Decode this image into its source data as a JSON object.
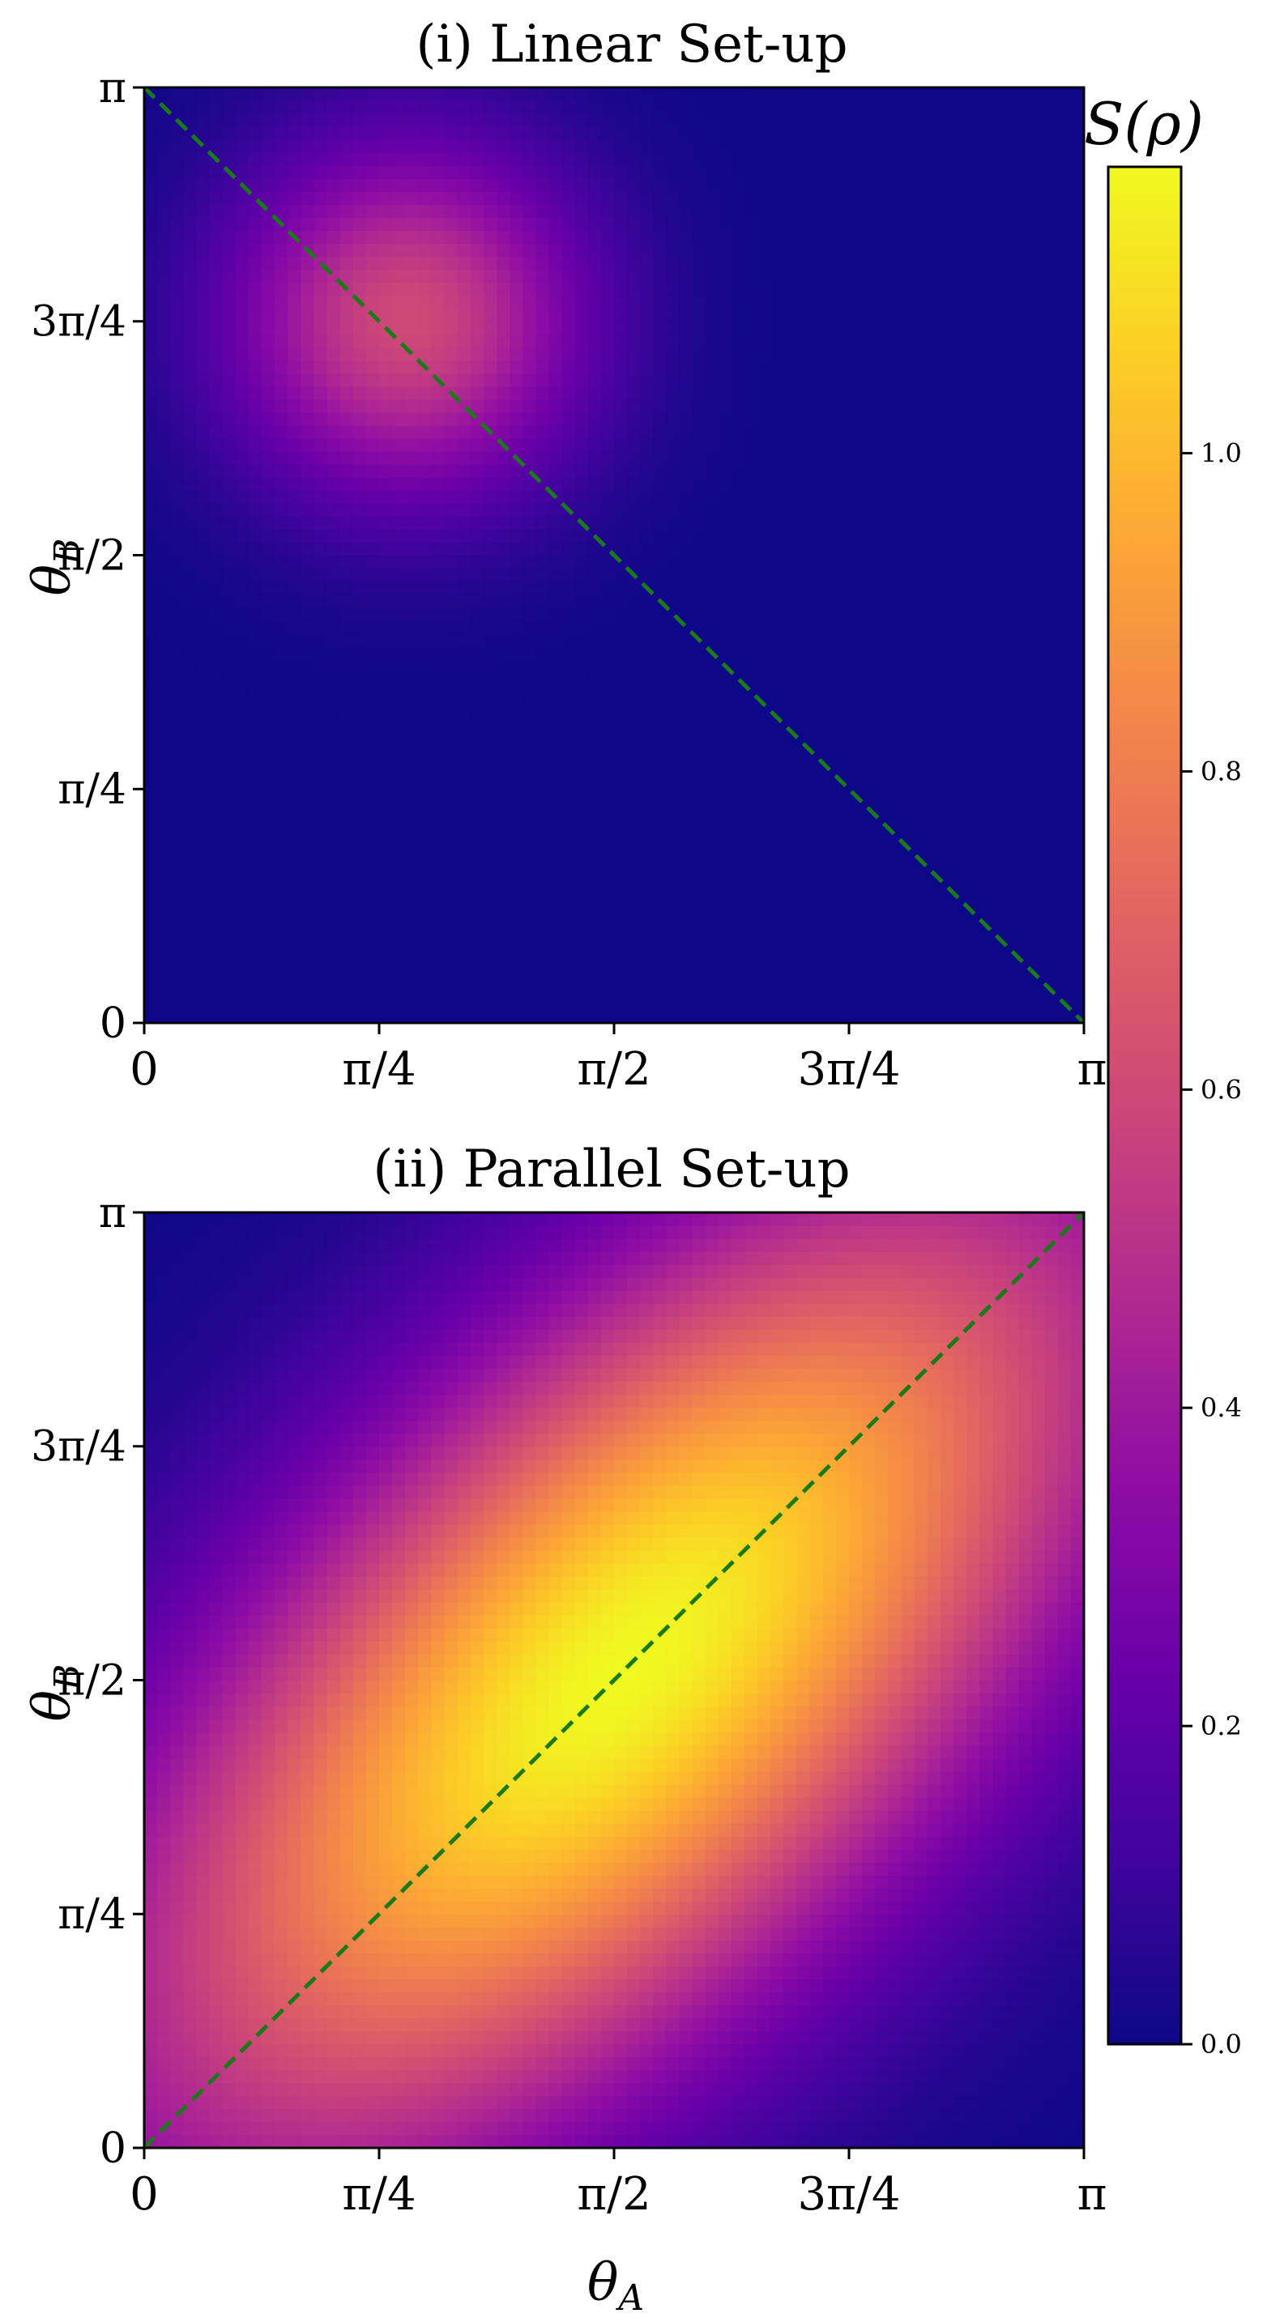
{
  "colorbar": {
    "label": "S(ρ)",
    "colormap": "plasma",
    "vmin": 0.0,
    "vmax": 1.18,
    "ticks": [
      0.0,
      0.2,
      0.4,
      0.6,
      0.8,
      1.0
    ],
    "tick_labels": [
      "0.0",
      "0.2",
      "0.4",
      "0.6",
      "0.8",
      "1.0"
    ]
  },
  "chart_data": [
    {
      "type": "heatmap",
      "title": "(i) Linear Set-up",
      "xlabel": "",
      "ylabel": "θ_B",
      "xlim": [
        0,
        3.14159
      ],
      "ylim": [
        0,
        3.14159
      ],
      "x_ticks": [
        0,
        0.7854,
        1.5708,
        2.3562,
        3.14159
      ],
      "y_ticks": [
        0,
        0.7854,
        1.5708,
        2.3562,
        3.14159
      ],
      "x_tick_labels": [
        "0",
        "π/4",
        "π/2",
        "3π/4",
        "π"
      ],
      "y_tick_labels": [
        "0",
        "π/4",
        "π/2",
        "3π/4",
        "π"
      ],
      "color_scale": "colorbar S(ρ)",
      "features": [
        {
          "kind": "peak",
          "theta_A": 0.88,
          "theta_B": 2.36,
          "value": 0.6,
          "spread": 0.42
        }
      ],
      "reference_line": {
        "style": "dashed",
        "color": "#1a7a1a",
        "from": [
          0,
          3.14159
        ],
        "to": [
          3.14159,
          0
        ]
      }
    },
    {
      "type": "heatmap",
      "title": "(ii) Parallel Set-up",
      "xlabel": "θ_A",
      "ylabel": "θ_B",
      "xlim": [
        0,
        3.14159
      ],
      "ylim": [
        0,
        3.14159
      ],
      "x_ticks": [
        0,
        0.7854,
        1.5708,
        2.3562,
        3.14159
      ],
      "y_ticks": [
        0,
        0.7854,
        1.5708,
        2.3562,
        3.14159
      ],
      "x_tick_labels": [
        "0",
        "π/4",
        "π/2",
        "3π/4",
        "π"
      ],
      "y_tick_labels": [
        "0",
        "π/4",
        "π/2",
        "3π/4",
        "π"
      ],
      "color_scale": "colorbar S(ρ)",
      "features": [
        {
          "kind": "ridge",
          "center": [
            1.6,
            1.6
          ],
          "direction": "diagonal",
          "value": 1.18,
          "spread_along": 1.5,
          "spread_across": 0.7
        }
      ],
      "reference_line": {
        "style": "dashed",
        "color": "#1a7a1a",
        "from": [
          0,
          0
        ],
        "to": [
          3.14159,
          3.14159
        ]
      }
    }
  ]
}
